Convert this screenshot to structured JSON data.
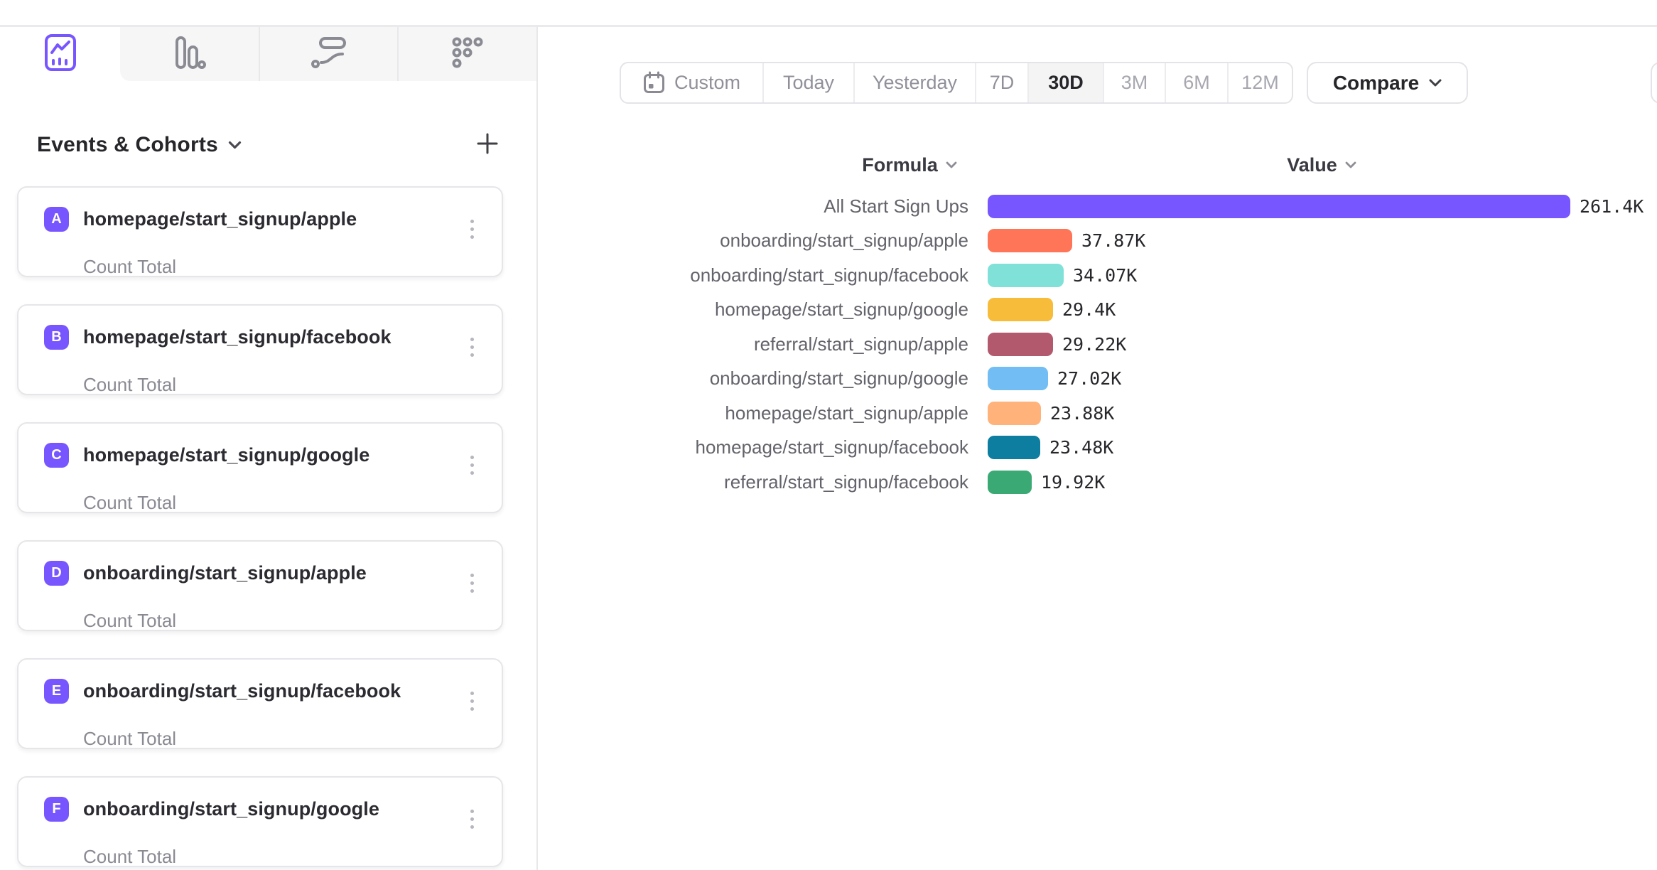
{
  "accent_color": "#7856FF",
  "sidebar": {
    "tabs": [
      {
        "name": "insights",
        "active": true
      },
      {
        "name": "funnels",
        "active": false
      },
      {
        "name": "flows",
        "active": false
      },
      {
        "name": "retention",
        "active": false
      }
    ],
    "header": {
      "title": "Events & Cohorts"
    },
    "events": [
      {
        "letter": "A",
        "name": "homepage/start_signup/apple",
        "metric": "Count Total"
      },
      {
        "letter": "B",
        "name": "homepage/start_signup/facebook",
        "metric": "Count Total"
      },
      {
        "letter": "C",
        "name": "homepage/start_signup/google",
        "metric": "Count Total"
      },
      {
        "letter": "D",
        "name": "onboarding/start_signup/apple",
        "metric": "Count Total"
      },
      {
        "letter": "E",
        "name": "onboarding/start_signup/facebook",
        "metric": "Count Total"
      },
      {
        "letter": "F",
        "name": "onboarding/start_signup/google",
        "metric": "Count Total"
      }
    ],
    "badge_color": "#7856FF"
  },
  "toolbar": {
    "date_ranges": [
      {
        "label": "Custom",
        "icon": "calendar",
        "active": false,
        "muted": false
      },
      {
        "label": "Today",
        "active": false,
        "muted": false
      },
      {
        "label": "Yesterday",
        "active": false,
        "muted": false
      },
      {
        "label": "7D",
        "active": false,
        "muted": false
      },
      {
        "label": "30D",
        "active": true,
        "muted": false
      },
      {
        "label": "3M",
        "active": false,
        "muted": true
      },
      {
        "label": "6M",
        "active": false,
        "muted": true
      },
      {
        "label": "12M",
        "active": false,
        "muted": true
      }
    ],
    "compare_label": "Compare"
  },
  "chart_data": {
    "type": "bar",
    "orientation": "horizontal",
    "columns": {
      "formula": "Formula",
      "value": "Value"
    },
    "max_value": 261400,
    "rows": [
      {
        "label": "All Start Sign Ups",
        "value": 261400,
        "display": "261.4K",
        "color": "#7856FF"
      },
      {
        "label": "onboarding/start_signup/apple",
        "value": 37870,
        "display": "37.87K",
        "color": "#FF7557"
      },
      {
        "label": "onboarding/start_signup/facebook",
        "value": 34070,
        "display": "34.07K",
        "color": "#80E1D9"
      },
      {
        "label": "homepage/start_signup/google",
        "value": 29400,
        "display": "29.4K",
        "color": "#F8BC3B"
      },
      {
        "label": "referral/start_signup/apple",
        "value": 29220,
        "display": "29.22K",
        "color": "#B2596E"
      },
      {
        "label": "onboarding/start_signup/google",
        "value": 27020,
        "display": "27.02K",
        "color": "#72BEF4"
      },
      {
        "label": "homepage/start_signup/apple",
        "value": 23880,
        "display": "23.88K",
        "color": "#FFB27A"
      },
      {
        "label": "homepage/start_signup/facebook",
        "value": 23480,
        "display": "23.48K",
        "color": "#0D7EA0"
      },
      {
        "label": "referral/start_signup/facebook",
        "value": 19920,
        "display": "19.92K",
        "color": "#3BA974"
      }
    ]
  }
}
